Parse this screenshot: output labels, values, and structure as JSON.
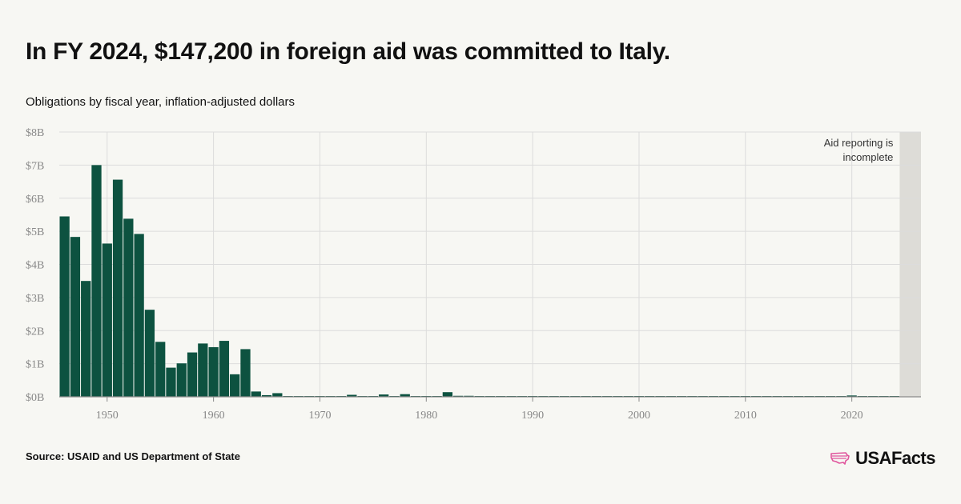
{
  "header": {
    "title": "In FY 2024, $147,200 in foreign aid was committed to Italy.",
    "subtitle": "Obligations by fiscal year, inflation-adjusted dollars"
  },
  "footer": {
    "source": "Source: USAID and US Department of State",
    "brand": "USAFacts"
  },
  "colors": {
    "bar": "#0d5240",
    "shade": "#dddcd7",
    "grid": "#dcdcdc",
    "axis": "#8a8a8a",
    "brand_icon": "#e0569d"
  },
  "chart_data": {
    "type": "bar",
    "x": [
      1946,
      1947,
      1948,
      1949,
      1950,
      1951,
      1952,
      1953,
      1954,
      1955,
      1956,
      1957,
      1958,
      1959,
      1960,
      1961,
      1962,
      1963,
      1964,
      1965,
      1966,
      1967,
      1968,
      1969,
      1970,
      1971,
      1972,
      1973,
      1974,
      1975,
      1976,
      1977,
      1978,
      1979,
      1980,
      1981,
      1982,
      1983,
      1984,
      1985,
      1986,
      1987,
      1988,
      1989,
      1990,
      1991,
      1992,
      1993,
      1994,
      1995,
      1996,
      1997,
      1998,
      1999,
      2000,
      2001,
      2002,
      2003,
      2004,
      2005,
      2006,
      2007,
      2008,
      2009,
      2010,
      2011,
      2012,
      2013,
      2014,
      2015,
      2016,
      2017,
      2018,
      2019,
      2020,
      2021,
      2022,
      2023,
      2024
    ],
    "values": [
      5.45,
      4.83,
      3.5,
      7.0,
      4.63,
      6.56,
      5.38,
      4.92,
      2.63,
      1.66,
      0.88,
      1.01,
      1.34,
      1.61,
      1.5,
      1.69,
      0.68,
      1.44,
      0.16,
      0.05,
      0.11,
      0.01,
      0.01,
      0.01,
      0.01,
      0.01,
      0.01,
      0.06,
      0.01,
      0.01,
      0.07,
      0.01,
      0.08,
      0.01,
      0.01,
      0.01,
      0.14,
      0.03,
      0.03,
      0.01,
      0.01,
      0.01,
      0.01,
      0.01,
      0.01,
      0.01,
      0.01,
      0.01,
      0.01,
      0.01,
      0.01,
      0.01,
      0.01,
      0.01,
      0.01,
      0.01,
      0.01,
      0.01,
      0.01,
      0.01,
      0.01,
      0.01,
      0.01,
      0.01,
      0.01,
      0.01,
      0.01,
      0.01,
      0.01,
      0.01,
      0.01,
      0.01,
      0.01,
      0.01,
      0.04,
      0.01,
      0.01,
      0.01,
      0.0001472
    ],
    "value_unit": "billions USD",
    "xlim": [
      1945.5,
      2026.5
    ],
    "ylim": [
      0,
      8
    ],
    "yticks": [
      0,
      1,
      2,
      3,
      4,
      5,
      6,
      7,
      8
    ],
    "ytick_labels": [
      "$0B",
      "$1B",
      "$2B",
      "$3B",
      "$4B",
      "$5B",
      "$6B",
      "$7B",
      "$8B"
    ],
    "xticks": [
      1950,
      1960,
      1970,
      1980,
      1990,
      2000,
      2010,
      2020
    ],
    "xtick_labels": [
      "1950",
      "1960",
      "1970",
      "1980",
      "1990",
      "2000",
      "2010",
      "2020"
    ],
    "shaded_region": {
      "x_start": 2024.5,
      "x_end": 2026.5
    },
    "annotation": {
      "line1": "Aid reporting is",
      "line2": "incomplete"
    },
    "grid": true,
    "xlabel": "",
    "ylabel": ""
  }
}
